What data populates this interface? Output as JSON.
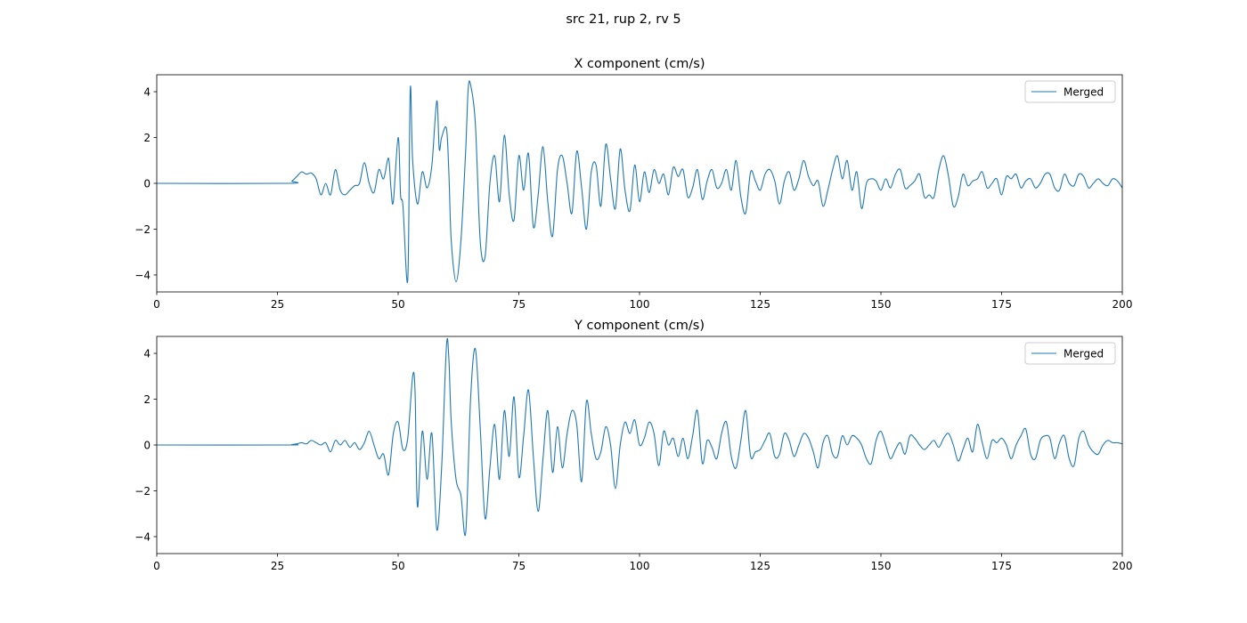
{
  "chart_data": [
    {
      "type": "line",
      "suptitle": "src 21, rup 2, rv 5",
      "title": "X component (cm/s)",
      "xlabel": "",
      "ylabel": "",
      "xlim": [
        0,
        200
      ],
      "ylim": [
        -4.74,
        4.74
      ],
      "xticks": [
        0,
        25,
        50,
        75,
        100,
        125,
        150,
        175,
        200
      ],
      "yticks": [
        -4,
        -2,
        0,
        2,
        4
      ],
      "ytick_labels": [
        "−4",
        "−2",
        "0",
        "2",
        "4"
      ],
      "legend": {
        "placement": "top-right",
        "entries": [
          "Merged"
        ]
      },
      "color": "#1f77b4",
      "series": [
        {
          "name": "Merged",
          "t": [
            0,
            27,
            28,
            29,
            30,
            31,
            32,
            33,
            34,
            35,
            36,
            37,
            38,
            39,
            40,
            41,
            42,
            43,
            44,
            45,
            46,
            47,
            48,
            48.5,
            49,
            50,
            50.5,
            51,
            52,
            52.5,
            53,
            54,
            55,
            56,
            57,
            58,
            58.5,
            59,
            60,
            60.5,
            61,
            62,
            63,
            64,
            64.5,
            65,
            66,
            67,
            68,
            69,
            70,
            71,
            72,
            73,
            74,
            75,
            76,
            77,
            78,
            79,
            80,
            81,
            82,
            83,
            84,
            85,
            86,
            87,
            88,
            89,
            90,
            91,
            92,
            93,
            94,
            95,
            96,
            97,
            98,
            99,
            100,
            101,
            102,
            103,
            104,
            105,
            106,
            107,
            108,
            109,
            110,
            111,
            112,
            113,
            114,
            115,
            116,
            117,
            118,
            119,
            120,
            121,
            122,
            123,
            124,
            125,
            126,
            127,
            128,
            129,
            130,
            131,
            132,
            133,
            134,
            135,
            136,
            137,
            138,
            139,
            140,
            141,
            142,
            143,
            144,
            145,
            146,
            147,
            148,
            149,
            150,
            151,
            152,
            153,
            154,
            155,
            156,
            157,
            158,
            159,
            160,
            161,
            162,
            163,
            164,
            165,
            166,
            167,
            168,
            169,
            170,
            171,
            172,
            173,
            174,
            175,
            176,
            177,
            178,
            179,
            180,
            181,
            182,
            183,
            184,
            185,
            186,
            187,
            188,
            189,
            190,
            191,
            192,
            193,
            194,
            195,
            196,
            197,
            198,
            199,
            200
          ],
          "values": [
            0,
            0,
            0.1,
            0.3,
            0.5,
            0.4,
            0.45,
            0.2,
            -0.5,
            0,
            -0.5,
            0.6,
            -0.3,
            -0.5,
            -0.3,
            -0.1,
            0,
            0.9,
            0.0,
            -0.4,
            0.6,
            0.2,
            1.1,
            -0.2,
            -0.8,
            2.0,
            -0.5,
            -1.0,
            -4.2,
            4.1,
            1.0,
            -0.9,
            0.5,
            -0.2,
            0.8,
            3.6,
            1.5,
            2.0,
            2.4,
            0.5,
            -2.5,
            -4.3,
            -2.5,
            1.5,
            4.1,
            4.3,
            2.6,
            -2.5,
            -3.2,
            0,
            1.2,
            -0.8,
            2.1,
            -0.5,
            -1.6,
            1.2,
            -0.3,
            1.3,
            -1.9,
            -0.5,
            1.6,
            -0.8,
            -2.3,
            0.6,
            1.2,
            0.0,
            -1.3,
            1.4,
            -0.2,
            -2.0,
            0.5,
            0.8,
            -1.0,
            1.7,
            0.2,
            -1.1,
            1.5,
            -0.3,
            -1.2,
            0.8,
            -0.8,
            0.5,
            -0.4,
            0.6,
            0.0,
            0.4,
            -0.5,
            0.7,
            0.3,
            0.6,
            -0.6,
            -0.2,
            0.6,
            -0.7,
            0.1,
            0.6,
            -0.2,
            0.0,
            0.6,
            -0.3,
            1.0,
            -0.6,
            -1.3,
            0.5,
            0.1,
            -0.3,
            0.4,
            0.6,
            0.1,
            -0.9,
            0.1,
            0.5,
            -0.3,
            0.2,
            1.0,
            0.3,
            -0.1,
            0.1,
            -1.0,
            -0.3,
            0.6,
            1.2,
            0.2,
            1.0,
            -0.3,
            0.5,
            -1.1,
            0.0,
            0.2,
            0.1,
            -0.3,
            0.2,
            -0.2,
            0.4,
            0.6,
            -0.2,
            -0.1,
            0.1,
            0.4,
            -0.6,
            -0.5,
            -0.6,
            0.6,
            1.2,
            0.3,
            -1.0,
            -0.6,
            0.4,
            -0.1,
            0.1,
            0.2,
            0.5,
            -0.2,
            0.0,
            0.2,
            -0.5,
            0.3,
            0.2,
            0.4,
            -0.2,
            0.1,
            0.2,
            -0.2,
            0.0,
            0.4,
            0.4,
            -0.2,
            -0.3,
            0.4,
            0.0,
            -0.1,
            0.4,
            0.3,
            -0.2,
            0.0,
            0.2,
            0.0,
            -0.1,
            0.2,
            0.1,
            -0.2
          ]
        }
      ]
    },
    {
      "type": "line",
      "title": "Y component (cm/s)",
      "xlabel": "",
      "ylabel": "",
      "xlim": [
        0,
        200
      ],
      "ylim": [
        -4.74,
        4.74
      ],
      "xticks": [
        0,
        25,
        50,
        75,
        100,
        125,
        150,
        175,
        200
      ],
      "yticks": [
        -4,
        -2,
        0,
        2,
        4
      ],
      "ytick_labels": [
        "−4",
        "−2",
        "0",
        "2",
        "4"
      ],
      "legend": {
        "placement": "top-right",
        "entries": [
          "Merged"
        ]
      },
      "color": "#1f77b4",
      "series": [
        {
          "name": "Merged",
          "t": [
            0,
            27,
            28,
            29,
            30,
            31,
            32,
            33,
            34,
            35,
            36,
            37,
            38,
            39,
            40,
            41,
            42,
            43,
            44,
            45,
            46,
            47,
            48,
            49,
            50,
            51,
            52,
            53,
            53.5,
            54,
            55,
            56,
            57,
            58,
            59,
            60,
            60.5,
            61,
            62,
            63,
            64,
            65,
            66,
            67,
            68,
            69,
            70,
            71,
            72,
            73,
            74,
            75,
            76,
            77,
            78,
            79,
            80,
            81,
            82,
            83,
            84,
            85,
            86,
            87,
            88,
            89,
            90,
            91,
            92,
            93,
            94,
            95,
            96,
            97,
            98,
            99,
            100,
            101,
            102,
            103,
            104,
            105,
            106,
            107,
            108,
            109,
            110,
            111,
            112,
            113,
            114,
            115,
            116,
            117,
            118,
            119,
            120,
            121,
            122,
            123,
            124,
            125,
            126,
            127,
            128,
            129,
            130,
            131,
            132,
            133,
            134,
            135,
            136,
            137,
            138,
            139,
            140,
            141,
            142,
            143,
            144,
            145,
            146,
            147,
            148,
            149,
            150,
            151,
            152,
            153,
            154,
            155,
            156,
            157,
            158,
            159,
            160,
            161,
            162,
            163,
            164,
            165,
            166,
            167,
            168,
            169,
            170,
            171,
            172,
            173,
            174,
            175,
            176,
            177,
            178,
            179,
            180,
            181,
            182,
            183,
            184,
            185,
            186,
            187,
            188,
            189,
            190,
            191,
            192,
            193,
            194,
            195,
            196,
            197,
            198,
            199,
            200
          ],
          "values": [
            0,
            0,
            0.02,
            0.05,
            0.1,
            0.05,
            0.2,
            0.1,
            0.0,
            0.1,
            -0.3,
            0.2,
            0.0,
            0.2,
            -0.1,
            0.1,
            -0.2,
            0.1,
            0.6,
            0.0,
            -0.6,
            -0.4,
            -1.3,
            0.5,
            1.0,
            -0.2,
            0.3,
            3.0,
            2.3,
            -2.7,
            0.6,
            -1.5,
            0.5,
            -3.7,
            -1.0,
            4.3,
            3.8,
            1.0,
            -1.5,
            -2.2,
            -3.8,
            2.0,
            4.2,
            0.8,
            -3.2,
            -1.0,
            0.9,
            -1.5,
            1.5,
            -0.5,
            2.1,
            -1.4,
            0.4,
            2.4,
            -0.5,
            -2.9,
            -0.6,
            1.5,
            -1.2,
            0.8,
            -1.0,
            0.5,
            1.5,
            0.9,
            -1.6,
            1.9,
            0.5,
            -0.6,
            -0.3,
            0.8,
            0.0,
            -1.9,
            0.0,
            1.0,
            0.5,
            1.1,
            0.0,
            0.3,
            1.0,
            0.5,
            -0.9,
            0.6,
            0.0,
            0.3,
            -0.5,
            0.3,
            -0.6,
            0.4,
            1.5,
            -0.8,
            0.2,
            -0.1,
            -0.6,
            0.5,
            1.0,
            -0.5,
            -1.0,
            0.2,
            1.5,
            -0.5,
            -0.3,
            -0.2,
            0.2,
            0.5,
            -0.5,
            -0.4,
            0.5,
            0.2,
            -0.5,
            0.0,
            0.5,
            0.3,
            -0.3,
            -1.0,
            0.1,
            0.4,
            -0.4,
            -0.5,
            0.4,
            0.0,
            0.4,
            0.3,
            0.0,
            -0.6,
            -0.8,
            0.2,
            0.6,
            0.0,
            -0.6,
            -0.2,
            0.1,
            -0.4,
            0.4,
            0.3,
            0.0,
            -0.2,
            0.0,
            0.2,
            -0.1,
            0.3,
            0.5,
            0.0,
            -0.7,
            -0.2,
            0.3,
            -0.3,
            0.9,
            0.1,
            -0.6,
            0.2,
            0.1,
            0.3,
            0.0,
            -0.6,
            0.0,
            0.4,
            0.7,
            -0.4,
            -0.6,
            0.2,
            0.4,
            0.3,
            -0.6,
            0.1,
            0.4,
            -0.6,
            -0.9,
            0.3,
            0.6,
            0.0,
            -0.3,
            -0.4,
            0.0,
            0.2,
            0.1,
            0.1,
            0.05
          ]
        }
      ]
    }
  ]
}
